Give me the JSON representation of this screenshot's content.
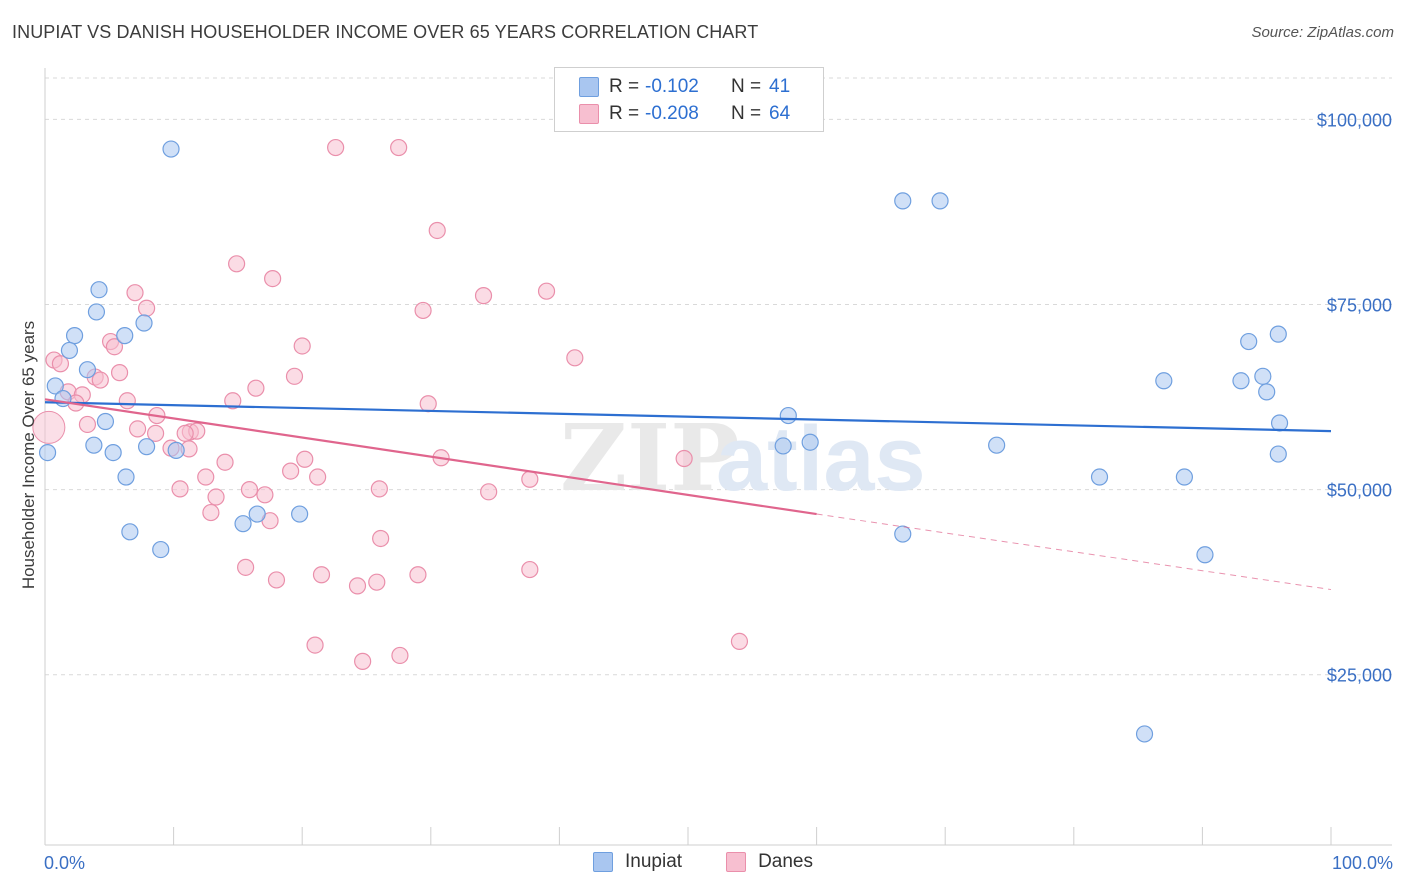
{
  "header": {
    "title": "INUPIAT VS DANISH HOUSEHOLDER INCOME OVER 65 YEARS CORRELATION CHART",
    "source": "Source: ZipAtlas.com"
  },
  "legend": {
    "rows": [
      {
        "name": "Inupiat",
        "r_label": "R =",
        "r_value": "-0.102",
        "n_label": "N =",
        "n_value": "41"
      },
      {
        "name": "Danes",
        "r_label": "R =",
        "r_value": "-0.208",
        "n_label": "N =",
        "n_value": "64"
      }
    ]
  },
  "watermark": {
    "zip": "ZIP",
    "atlas": "atlas"
  },
  "colors": {
    "inupiat_fill": "#a9c6f0",
    "inupiat_stroke": "#6f9fdf",
    "inupiat_line": "#2d6fd1",
    "danes_fill": "#f7bfd0",
    "danes_stroke": "#ea8fab",
    "danes_line": "#e0658d",
    "grid": "#d9d9d9",
    "axis_text": "#3a6fc4"
  },
  "chart_data": {
    "type": "scatter",
    "title": "INUPIAT VS DANISH HOUSEHOLDER INCOME OVER 65 YEARS CORRELATION CHART",
    "xlabel": "",
    "ylabel": "Householder Income Over 65 years",
    "xlim": [
      0,
      100
    ],
    "ylim": [
      2000,
      106000
    ],
    "x_tick_labels": [
      "0.0%",
      "100.0%"
    ],
    "y_ticks": [
      25000,
      50000,
      75000,
      100000
    ],
    "y_tick_labels": [
      "$25,000",
      "$50,000",
      "$75,000",
      "$100,000"
    ],
    "grid": true,
    "series": [
      {
        "name": "Inupiat",
        "points": [
          [
            9.8,
            96000
          ],
          [
            66.7,
            89000
          ],
          [
            69.6,
            89000
          ],
          [
            4.2,
            77000
          ],
          [
            4.0,
            74000
          ],
          [
            7.7,
            72500
          ],
          [
            6.2,
            70800
          ],
          [
            2.3,
            70800
          ],
          [
            1.9,
            68800
          ],
          [
            3.3,
            66200
          ],
          [
            0.8,
            64000
          ],
          [
            1.4,
            62300
          ],
          [
            4.7,
            59200
          ],
          [
            5.3,
            55000
          ],
          [
            7.9,
            55800
          ],
          [
            10.2,
            55300
          ],
          [
            0.2,
            55000
          ],
          [
            6.3,
            51700
          ],
          [
            6.6,
            44300
          ],
          [
            9.0,
            41900
          ],
          [
            15.4,
            45400
          ],
          [
            16.5,
            46700
          ],
          [
            19.8,
            46700
          ],
          [
            57.8,
            60000
          ],
          [
            57.4,
            55900
          ],
          [
            59.5,
            56400
          ],
          [
            74.0,
            56000
          ],
          [
            66.7,
            44000
          ],
          [
            82.0,
            51700
          ],
          [
            88.6,
            51700
          ],
          [
            90.2,
            41200
          ],
          [
            87.0,
            64700
          ],
          [
            93.0,
            64700
          ],
          [
            93.6,
            70000
          ],
          [
            95.9,
            71000
          ],
          [
            94.7,
            65300
          ],
          [
            95.0,
            63200
          ],
          [
            96.0,
            59000
          ],
          [
            95.9,
            54800
          ],
          [
            85.5,
            17000
          ],
          [
            3.8,
            56000
          ]
        ]
      },
      {
        "name": "Danes",
        "points": [
          [
            22.6,
            96200
          ],
          [
            27.5,
            96200
          ],
          [
            30.5,
            85000
          ],
          [
            14.9,
            80500
          ],
          [
            17.7,
            78500
          ],
          [
            34.1,
            76200
          ],
          [
            39.0,
            76800
          ],
          [
            7.0,
            76600
          ],
          [
            7.9,
            74500
          ],
          [
            29.4,
            74200
          ],
          [
            5.1,
            70000
          ],
          [
            20.0,
            69400
          ],
          [
            5.4,
            69300
          ],
          [
            0.7,
            67500
          ],
          [
            1.2,
            67000
          ],
          [
            41.2,
            67800
          ],
          [
            5.8,
            65800
          ],
          [
            3.9,
            65200
          ],
          [
            19.4,
            65300
          ],
          [
            4.3,
            64800
          ],
          [
            16.4,
            63700
          ],
          [
            1.8,
            63200
          ],
          [
            2.9,
            62800
          ],
          [
            14.6,
            62000
          ],
          [
            29.8,
            61600
          ],
          [
            6.4,
            62000
          ],
          [
            2.4,
            61700
          ],
          [
            8.7,
            60000
          ],
          [
            3.3,
            58800
          ],
          [
            7.2,
            58200
          ],
          [
            11.3,
            57800
          ],
          [
            11.8,
            57900
          ],
          [
            10.9,
            57600
          ],
          [
            8.6,
            57600
          ],
          [
            9.8,
            55600
          ],
          [
            11.2,
            55500
          ],
          [
            20.2,
            54100
          ],
          [
            30.8,
            54300
          ],
          [
            14.0,
            53700
          ],
          [
            49.7,
            54200
          ],
          [
            19.1,
            52500
          ],
          [
            21.2,
            51700
          ],
          [
            12.5,
            51700
          ],
          [
            37.7,
            51400
          ],
          [
            26.0,
            50100
          ],
          [
            10.5,
            50100
          ],
          [
            15.9,
            50000
          ],
          [
            17.1,
            49300
          ],
          [
            13.3,
            49000
          ],
          [
            34.5,
            49700
          ],
          [
            12.9,
            46900
          ],
          [
            17.5,
            45800
          ],
          [
            26.1,
            43400
          ],
          [
            15.6,
            39500
          ],
          [
            37.7,
            39200
          ],
          [
            18.0,
            37800
          ],
          [
            21.5,
            38500
          ],
          [
            24.3,
            37000
          ],
          [
            25.8,
            37500
          ],
          [
            29.0,
            38500
          ],
          [
            21.0,
            29000
          ],
          [
            24.7,
            26800
          ],
          [
            27.6,
            27600
          ],
          [
            54.0,
            29500
          ]
        ]
      }
    ],
    "trendlines": [
      {
        "name": "Inupiat",
        "x": [
          0,
          100
        ],
        "y": [
          61800,
          57900
        ]
      },
      {
        "name": "Danes",
        "x": [
          0,
          60
        ],
        "y": [
          62200,
          46700
        ],
        "dashed_extension_to": [
          100,
          36500
        ]
      }
    ]
  }
}
